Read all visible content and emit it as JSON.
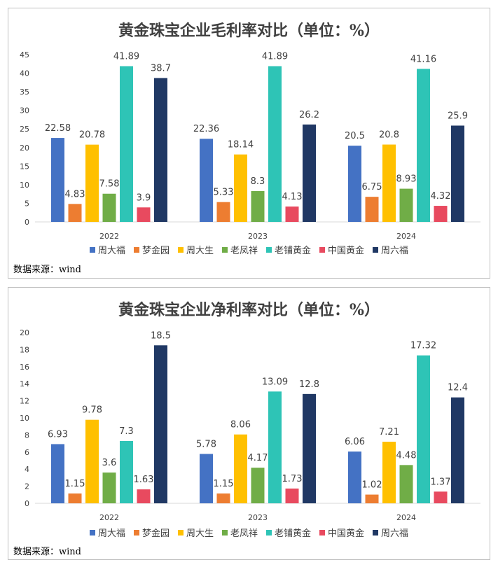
{
  "source_note": "数据来源：wind",
  "chart_data": [
    {
      "type": "bar",
      "title": "黄金珠宝企业毛利率对比（单位：%）",
      "categories": [
        "2022",
        "2023",
        "2024"
      ],
      "ylim": [
        0,
        45
      ],
      "yticks": [
        0,
        5,
        10,
        15,
        20,
        25,
        30,
        35,
        40,
        45
      ],
      "grid": false,
      "legend_position": "bottom",
      "series": [
        {
          "name": "周大福",
          "color": "#4472C4",
          "values": [
            22.58,
            22.36,
            20.5
          ]
        },
        {
          "name": "梦金园",
          "color": "#ED7D31",
          "values": [
            4.83,
            5.33,
            6.75
          ]
        },
        {
          "name": "周大生",
          "color": "#FFC000",
          "values": [
            20.78,
            18.14,
            20.8
          ]
        },
        {
          "name": "老凤祥",
          "color": "#70AD47",
          "values": [
            7.58,
            8.3,
            8.93
          ]
        },
        {
          "name": "老铺黄金",
          "color": "#2EC4B6",
          "values": [
            41.89,
            41.89,
            41.16
          ]
        },
        {
          "name": "中国黄金",
          "color": "#E84A5F",
          "values": [
            3.9,
            4.13,
            4.32
          ]
        },
        {
          "name": "周六福",
          "color": "#203864",
          "values": [
            38.7,
            26.2,
            25.9
          ]
        }
      ]
    },
    {
      "type": "bar",
      "title": "黄金珠宝企业净利率对比（单位：%）",
      "categories": [
        "2022",
        "2023",
        "2024"
      ],
      "ylim": [
        0,
        20
      ],
      "yticks": [
        0,
        2,
        4,
        6,
        8,
        10,
        12,
        14,
        16,
        18,
        20
      ],
      "grid": false,
      "legend_position": "bottom",
      "series": [
        {
          "name": "周大福",
          "color": "#4472C4",
          "values": [
            6.93,
            5.78,
            6.06
          ]
        },
        {
          "name": "梦金园",
          "color": "#ED7D31",
          "values": [
            1.15,
            1.15,
            1.02
          ]
        },
        {
          "name": "周大生",
          "color": "#FFC000",
          "values": [
            9.78,
            8.06,
            7.21
          ]
        },
        {
          "name": "老凤祥",
          "color": "#70AD47",
          "values": [
            3.6,
            4.17,
            4.48
          ]
        },
        {
          "name": "老铺黄金",
          "color": "#2EC4B6",
          "values": [
            7.3,
            13.09,
            17.32
          ]
        },
        {
          "name": "中国黄金",
          "color": "#E84A5F",
          "values": [
            1.63,
            1.73,
            1.37
          ]
        },
        {
          "name": "周六福",
          "color": "#203864",
          "values": [
            18.5,
            12.8,
            12.4
          ]
        }
      ]
    }
  ]
}
